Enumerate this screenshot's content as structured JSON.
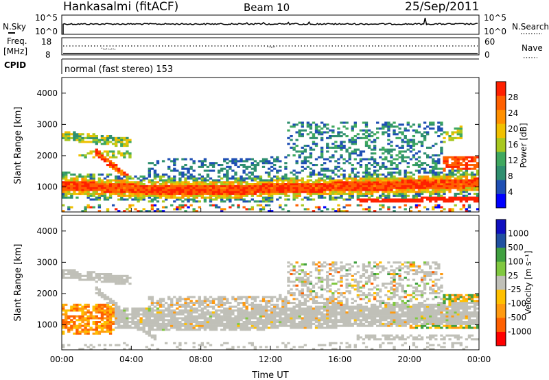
{
  "header": {
    "station": "Hankasalmi (fitACF)",
    "beam": "Beam 10",
    "date": "25/Sep/2011"
  },
  "noise_panel": {
    "left_label": "N.Sky",
    "left_ticks": [
      "10^5",
      "10^0"
    ],
    "right_ticks": [
      "10^5",
      "10^0"
    ],
    "right_label": "N.Search"
  },
  "freq_panel": {
    "left_label": [
      "Freq.",
      "[MHz]"
    ],
    "left_ticks": [
      "18",
      "8"
    ],
    "right_ticks": [
      "60",
      "0"
    ],
    "right_label": "Nave"
  },
  "cpid_panel": {
    "label": "CPID",
    "text": "normal (fast stereo) 153"
  },
  "colors": {
    "power": [
      "#0000ff",
      "#1f4fb4",
      "#2f8f6f",
      "#3fa85f",
      "#a8c820",
      "#f0c000",
      "#ff9000",
      "#ff6000",
      "#ff2000"
    ],
    "velocity": [
      "#ff0000",
      "#ff6000",
      "#ff9a10",
      "#ffc000",
      "#c0c0b8",
      "#80c840",
      "#40a040",
      "#2050a0",
      "#1010c0"
    ],
    "ground_scatter": "#c0c0b8"
  },
  "chart_data": [
    {
      "type": "heatmap",
      "quantity": "power",
      "ylabel": "Slant Range [km]",
      "ylim": [
        200,
        4500
      ],
      "y_ticks": [
        1000,
        2000,
        3000,
        4000
      ],
      "colorbar": {
        "label": "Power [dB]",
        "ticks": [
          4,
          8,
          12,
          16,
          20,
          24,
          28
        ],
        "range": [
          0,
          32
        ]
      },
      "bands_hours_km": [
        {
          "center_km": 1050,
          "width_km": 350,
          "from_h": 0,
          "to_h": 24,
          "level": "strong"
        },
        {
          "center_km": 2700,
          "width_km": 250,
          "from_h": 0,
          "to_h": 3.5,
          "level": "medium"
        },
        {
          "center_km": 2200,
          "width_km": 450,
          "from_h": 14,
          "to_h": 22,
          "level": "weak"
        },
        {
          "center_km": 600,
          "width_km": 180,
          "from_h": 17,
          "to_h": 24,
          "level": "strong"
        }
      ]
    },
    {
      "type": "heatmap",
      "quantity": "velocity",
      "xlabel": "Time UT",
      "ylabel": "Slant Range [km]",
      "ylim": [
        200,
        4500
      ],
      "y_ticks": [
        1000,
        2000,
        3000,
        4000
      ],
      "x_ticks": [
        "00:00",
        "04:00",
        "08:00",
        "12:00",
        "16:00",
        "20:00",
        "00:00"
      ],
      "colorbar": {
        "label": "Velocity [m s⁻¹]",
        "ticks": [
          "1000",
          "500",
          "100",
          "25",
          "-25",
          "-100",
          "-500",
          "-1000"
        ]
      }
    }
  ]
}
